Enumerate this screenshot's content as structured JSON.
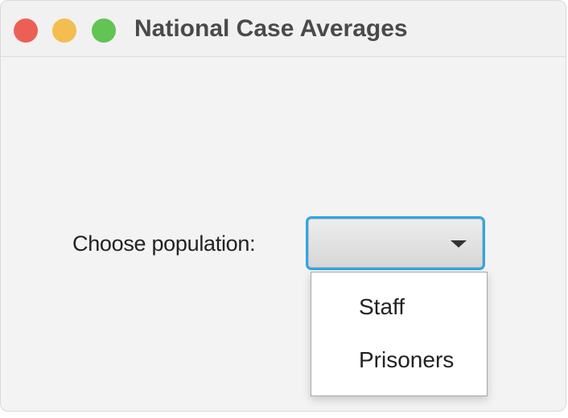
{
  "window": {
    "title": "National Case Averages",
    "controls": {
      "close_color": "#ec5f57",
      "minimize_color": "#f4bd4f",
      "zoom_color": "#61c454"
    }
  },
  "form": {
    "population_label": "Choose population:",
    "selected_value": "",
    "focus_color": "#2ea6e6"
  },
  "dropdown": {
    "expanded": true,
    "options": [
      "Staff",
      "Prisoners"
    ]
  }
}
